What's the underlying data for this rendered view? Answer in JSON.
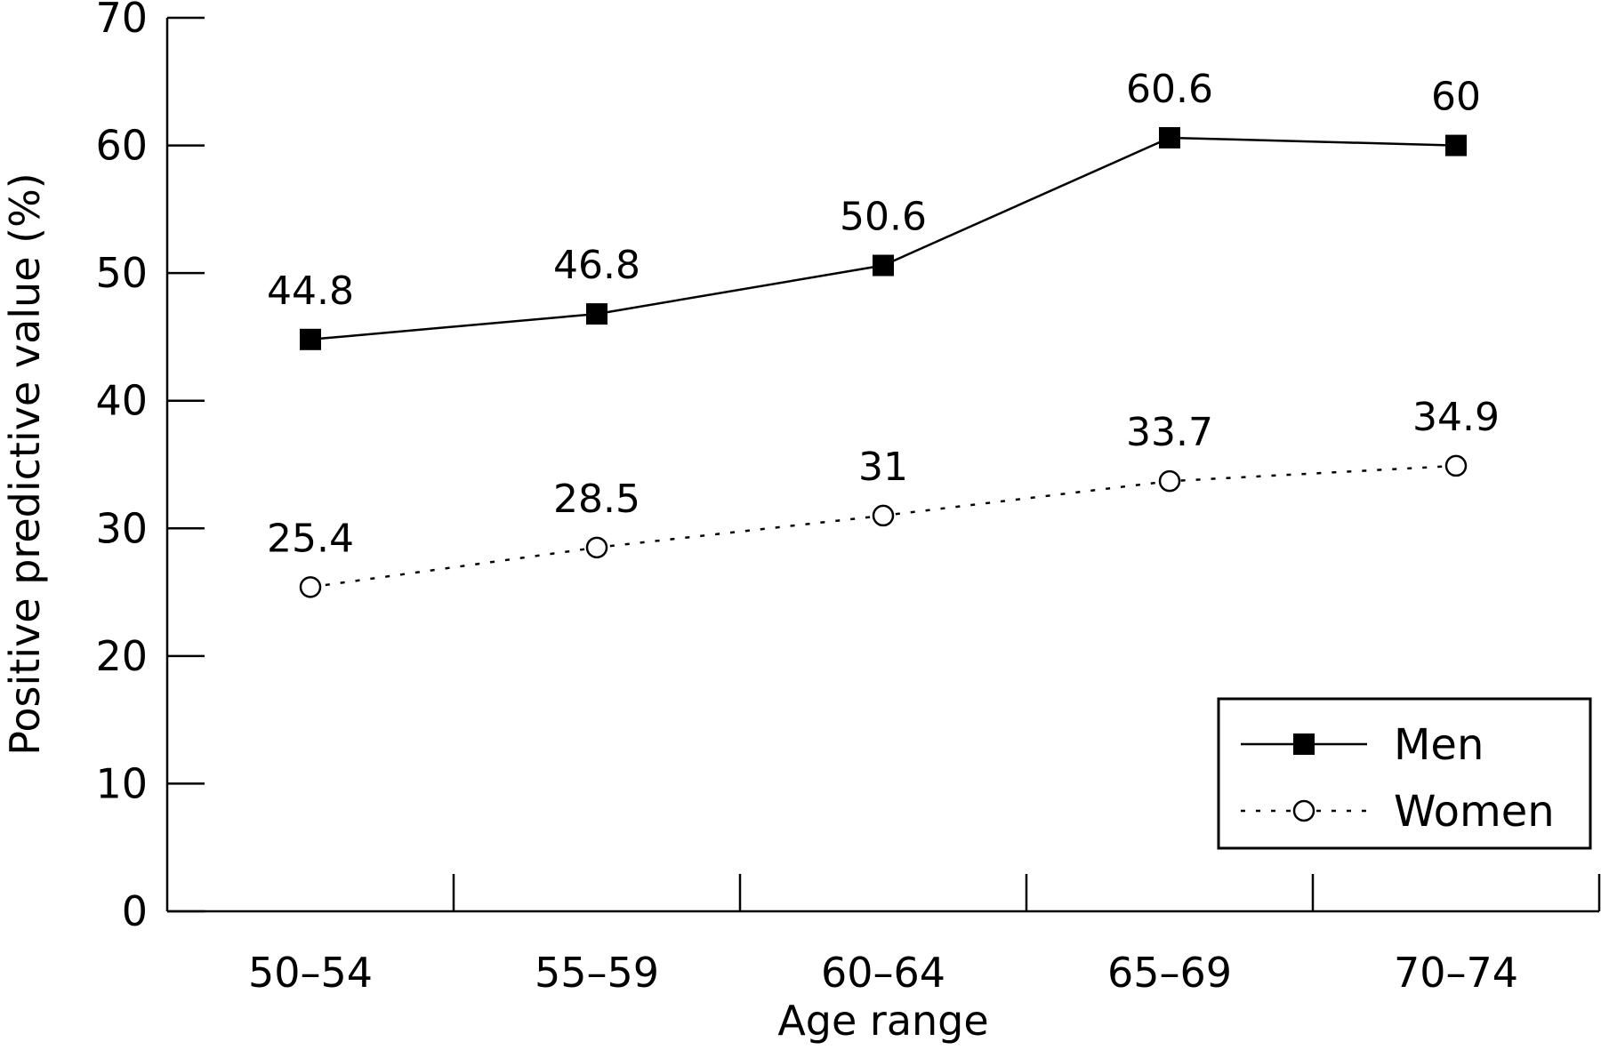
{
  "chart_data": {
    "type": "line",
    "title": "",
    "xlabel": "Age range",
    "ylabel": "Positive predictive value (%)",
    "categories": [
      "50–54",
      "55–59",
      "60–64",
      "65–69",
      "70–74"
    ],
    "ylim": [
      0,
      70
    ],
    "yticks": [
      0,
      10,
      20,
      30,
      40,
      50,
      60,
      70
    ],
    "grid": false,
    "legend_position": "bottom-right",
    "series": [
      {
        "name": "Men",
        "values": [
          44.8,
          46.8,
          50.6,
          60.6,
          60
        ],
        "labels": [
          "44.8",
          "46.8",
          "50.6",
          "60.6",
          "60"
        ],
        "marker": "filled-square",
        "line_style": "solid",
        "color": "#000000"
      },
      {
        "name": "Women",
        "values": [
          25.4,
          28.5,
          31,
          33.7,
          34.9
        ],
        "labels": [
          "25.4",
          "28.5",
          "31",
          "33.7",
          "34.9"
        ],
        "marker": "open-circle",
        "line_style": "dotted",
        "color": "#000000"
      }
    ]
  }
}
